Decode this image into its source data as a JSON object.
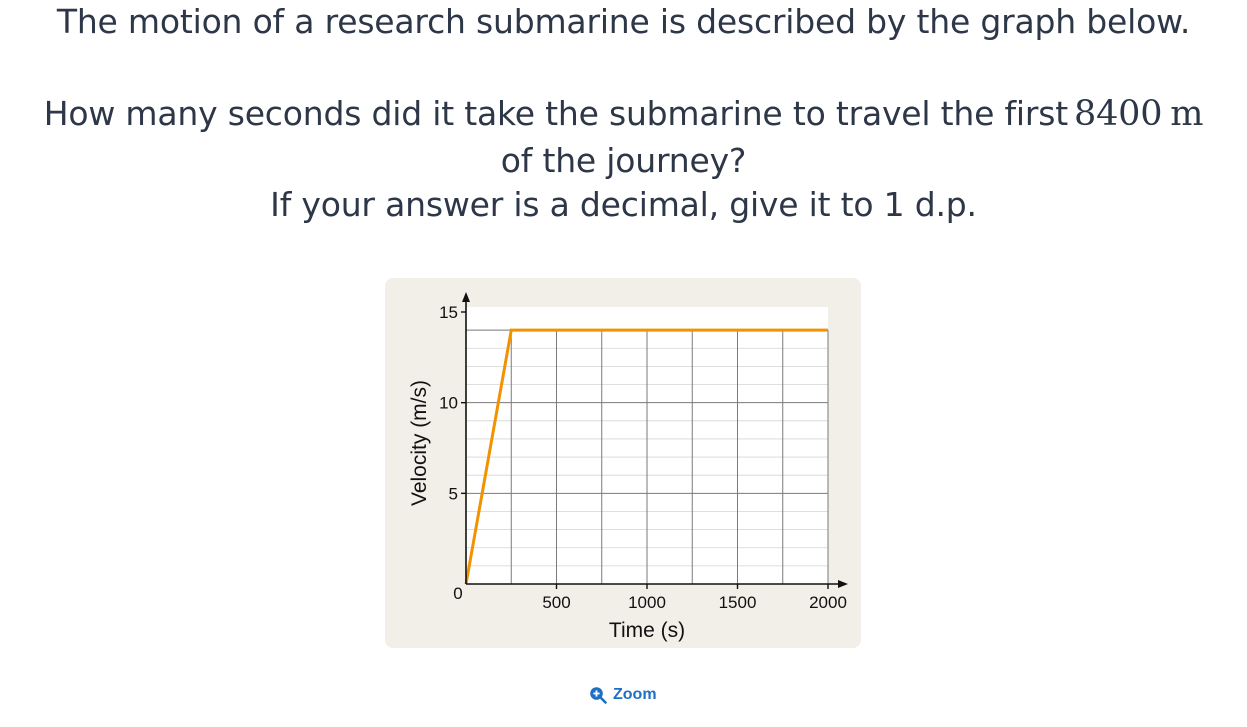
{
  "question": {
    "line1": "The motion of a research submarine is described by the graph below.",
    "line2_text": "How many seconds did it take the submarine to travel the first",
    "line2_value": "8400",
    "line2_unit": "m",
    "line3": "of the journey?",
    "line4": "If your answer is a decimal, give it to 1 d.p."
  },
  "chart_data": {
    "type": "line",
    "xlabel": "Time (s)",
    "ylabel": "Velocity (m/s)",
    "xlim": [
      0,
      2000
    ],
    "ylim": [
      0,
      15
    ],
    "x_ticks": [
      {
        "value": 0,
        "label": "0"
      },
      {
        "value": 500,
        "label": "500"
      },
      {
        "value": 1000,
        "label": "1000"
      },
      {
        "value": 1500,
        "label": "1500"
      },
      {
        "value": 2000,
        "label": "2000"
      }
    ],
    "y_ticks": [
      {
        "value": 5,
        "label": "5"
      },
      {
        "value": 10,
        "label": "10"
      },
      {
        "value": 15,
        "label": "15"
      }
    ],
    "grid": true,
    "grid_major_x": 250,
    "grid_major_y": 5,
    "grid_minor_y": 1,
    "series": [
      {
        "x": [
          0,
          250,
          2000
        ],
        "y": [
          0,
          14,
          14
        ],
        "color": "#f39200"
      }
    ]
  },
  "zoom": {
    "label": "Zoom",
    "icon": "zoom-in-icon"
  },
  "colors": {
    "text": "#2d3748",
    "card": "#f2efe9",
    "line": "#f39200",
    "link": "#1f6fc4"
  }
}
